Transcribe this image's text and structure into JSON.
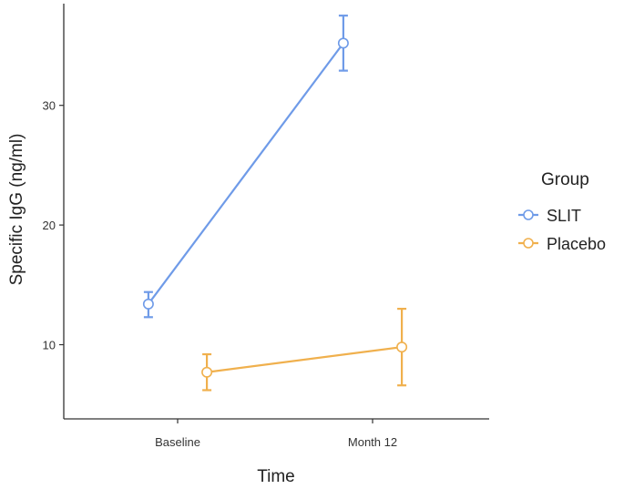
{
  "chart_data": {
    "type": "line",
    "xlabel": "Time",
    "ylabel": "Specific IgG (ng/ml)",
    "categories": [
      "Baseline",
      "Month 12"
    ],
    "yticks": [
      10,
      20,
      30
    ],
    "ylim": [
      3.8,
      38.5
    ],
    "grid": false,
    "legend": {
      "title": "Group",
      "position": "right"
    },
    "series": [
      {
        "name": "SLIT",
        "color": "#6f9be8",
        "values": [
          13.4,
          35.2
        ],
        "err_low": [
          12.3,
          32.9
        ],
        "err_high": [
          14.4,
          37.5
        ],
        "x_offset": -0.15
      },
      {
        "name": "Placebo",
        "color": "#f0b04d",
        "values": [
          7.7,
          9.8
        ],
        "err_low": [
          6.2,
          6.6
        ],
        "err_high": [
          9.2,
          13.0
        ],
        "x_offset": 0.15
      }
    ]
  }
}
